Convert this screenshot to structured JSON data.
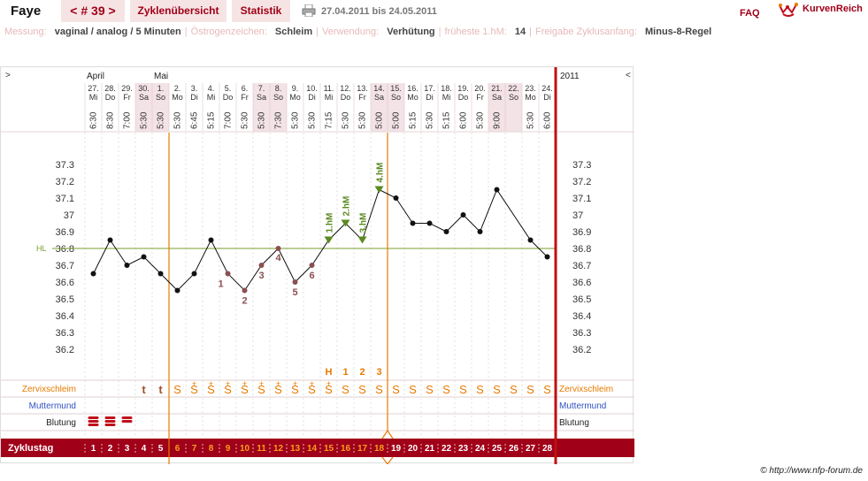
{
  "header": {
    "user": "Faye",
    "cycle_label": "< # 39 >",
    "tab_overview": "Zyklenübersicht",
    "tab_stats": "Statistik",
    "print_icon": "printer-icon",
    "date_range": "27.04.2011 bis 24.05.2011",
    "faq": "FAQ",
    "logo_text": "KurvenReich",
    "logo_icon": "kurvenreich-logo-icon"
  },
  "info": [
    {
      "label": "Messung:",
      "value": "vaginal / analog / 5 Minuten"
    },
    {
      "label": "Östrogenzeichen:",
      "value": "Schleim"
    },
    {
      "label": "Verwendung:",
      "value": "Verhütung"
    },
    {
      "label": "früheste 1.hM:",
      "value": "14"
    },
    {
      "label": "Freigabe Zyklusanfang:",
      "value": "Minus-8-Regel"
    }
  ],
  "chart_nav": {
    "left": ">",
    "right": "<",
    "year": "2011"
  },
  "months": [
    {
      "label": "April",
      "start_index": 0
    },
    {
      "label": "Mai",
      "start_index": 4
    }
  ],
  "days": [
    {
      "date": "27.",
      "wd": "Mi",
      "time": "6:30",
      "weekend": false
    },
    {
      "date": "28.",
      "wd": "Do",
      "time": "8:30",
      "weekend": false
    },
    {
      "date": "29.",
      "wd": "Fr",
      "time": "7:00",
      "weekend": false
    },
    {
      "date": "30.",
      "wd": "Sa",
      "time": "5:30",
      "weekend": true
    },
    {
      "date": "1.",
      "wd": "So",
      "time": "5:30",
      "weekend": true
    },
    {
      "date": "2.",
      "wd": "Mo",
      "time": "5:30",
      "weekend": false
    },
    {
      "date": "3.",
      "wd": "Di",
      "time": "6:45",
      "weekend": false
    },
    {
      "date": "4.",
      "wd": "Mi",
      "time": "5:15",
      "weekend": false
    },
    {
      "date": "5.",
      "wd": "Do",
      "time": "7:00",
      "weekend": false
    },
    {
      "date": "6.",
      "wd": "Fr",
      "time": "5:30",
      "weekend": false
    },
    {
      "date": "7.",
      "wd": "Sa",
      "time": "5:30",
      "weekend": true
    },
    {
      "date": "8.",
      "wd": "So",
      "time": "7:30",
      "weekend": true
    },
    {
      "date": "9.",
      "wd": "Mo",
      "time": "5:30",
      "weekend": false
    },
    {
      "date": "10.",
      "wd": "Di",
      "time": "5:30",
      "weekend": false
    },
    {
      "date": "11.",
      "wd": "Mi",
      "time": "7:15",
      "weekend": false
    },
    {
      "date": "12.",
      "wd": "Do",
      "time": "5:30",
      "weekend": false
    },
    {
      "date": "13.",
      "wd": "Fr",
      "time": "5:30",
      "weekend": false
    },
    {
      "date": "14.",
      "wd": "Sa",
      "time": "5:00",
      "weekend": true
    },
    {
      "date": "15.",
      "wd": "So",
      "time": "5:00",
      "weekend": true
    },
    {
      "date": "16.",
      "wd": "Mo",
      "time": "5:15",
      "weekend": false
    },
    {
      "date": "17.",
      "wd": "Di",
      "time": "5:30",
      "weekend": false
    },
    {
      "date": "18.",
      "wd": "Mi",
      "time": "5:15",
      "weekend": false
    },
    {
      "date": "19.",
      "wd": "Do",
      "time": "6:00",
      "weekend": false
    },
    {
      "date": "20.",
      "wd": "Fr",
      "time": "5:30",
      "weekend": false
    },
    {
      "date": "21.",
      "wd": "Sa",
      "time": "9:00",
      "weekend": true
    },
    {
      "date": "22.",
      "wd": "So",
      "time": "",
      "weekend": true
    },
    {
      "date": "23.",
      "wd": "Mo",
      "time": "5:30",
      "weekend": false
    },
    {
      "date": "24.",
      "wd": "Di",
      "time": "6:00",
      "weekend": false
    }
  ],
  "hl_label": "HL",
  "row_labels": {
    "cervix": "Zervixschleim",
    "mm": "Muttermund",
    "bleeding": "Blutung",
    "cycleday": "Zyklustag"
  },
  "mucus": [
    "",
    "",
    "",
    "t",
    "t",
    "S",
    "S+",
    "S+",
    "S+",
    "S+",
    "S+",
    "S+",
    "S+",
    "S+",
    "S+",
    "S",
    "S",
    "S",
    "S",
    "S",
    "S",
    "S",
    "S",
    "S",
    "S",
    "S",
    "S",
    "S"
  ],
  "peak_marks": [
    {
      "day_index": 14,
      "label": "H"
    },
    {
      "day_index": 15,
      "label": "1"
    },
    {
      "day_index": 16,
      "label": "2"
    },
    {
      "day_index": 17,
      "label": "3"
    }
  ],
  "bleeding_days": [
    0,
    1,
    2
  ],
  "bleeding_strength": [
    3,
    3,
    2
  ],
  "cycle_days": [
    "1",
    "2",
    "3",
    "4",
    "5",
    "6",
    "7",
    "8",
    "9",
    "10",
    "11",
    "12",
    "13",
    "14",
    "15",
    "16",
    "17",
    "18",
    "19",
    "20",
    "21",
    "22",
    "23",
    "24",
    "25",
    "26",
    "27",
    "28"
  ],
  "colors": {
    "accent": "#a00018",
    "orange": "#e87a00",
    "hl": "#7aa02a",
    "low_marker": "#8a5050",
    "high_marker": "#5a8a20",
    "muttermund": "#3050c0",
    "weekend": "#f3e2e6"
  },
  "chart_data": {
    "type": "line",
    "y_ticks": [
      "37.3",
      "37.2",
      "37.1",
      "37",
      "36.9",
      "36.8",
      "36.7",
      "36.6",
      "36.5",
      "36.4",
      "36.3",
      "36.2"
    ],
    "ylim": [
      36.1,
      37.4
    ],
    "temps": [
      36.65,
      36.85,
      36.7,
      36.75,
      36.65,
      36.55,
      36.65,
      36.85,
      36.65,
      36.55,
      36.7,
      36.8,
      36.6,
      36.7,
      36.85,
      36.95,
      36.85,
      37.15,
      37.1,
      36.95,
      36.95,
      36.9,
      37.0,
      36.9,
      37.15,
      null,
      36.85,
      36.75
    ],
    "hl": 36.8,
    "low_labels": [
      {
        "day_index": 8,
        "label": "1"
      },
      {
        "day_index": 9,
        "label": "2"
      },
      {
        "day_index": 10,
        "label": "3"
      },
      {
        "day_index": 11,
        "label": "4"
      },
      {
        "day_index": 12,
        "label": "5"
      },
      {
        "day_index": 13,
        "label": "6"
      }
    ],
    "high_labels": [
      {
        "day_index": 14,
        "label": "1.hM"
      },
      {
        "day_index": 15,
        "label": "2.hM"
      },
      {
        "day_index": 16,
        "label": "3.hM"
      },
      {
        "day_index": 17,
        "label": "4.hM"
      }
    ],
    "fertile_start_index": 5,
    "evaluation_index": 17
  },
  "copyright": "© http://www.nfp-forum.de"
}
